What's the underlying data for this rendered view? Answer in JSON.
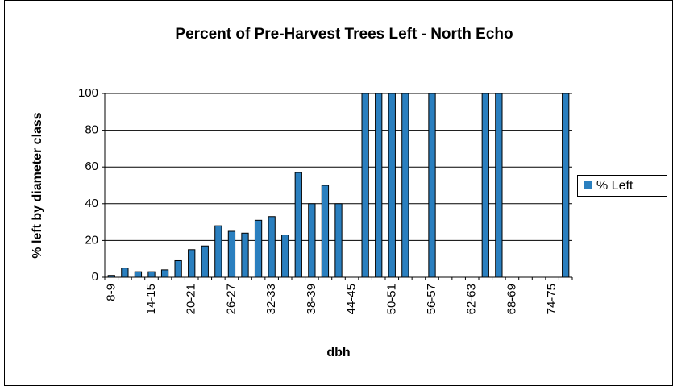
{
  "chart_data": {
    "type": "bar",
    "title": "Percent of Pre-Harvest Trees Left - North Echo",
    "x_label": "dbh",
    "y_label": "% left by diameter class",
    "categories": [
      "8-9",
      null,
      null,
      "14-15",
      null,
      null,
      "20-21",
      null,
      null,
      "26-27",
      null,
      null,
      "32-33",
      null,
      null,
      "38-39",
      null,
      null,
      "44-45",
      null,
      null,
      "50-51",
      null,
      null,
      "56-57",
      null,
      null,
      "62-63",
      null,
      null,
      "68-69",
      null,
      null,
      "74-75",
      null
    ],
    "series": [
      {
        "name": "% Left",
        "color": "#2a7fbf",
        "values": [
          1,
          5,
          3,
          3,
          4,
          9,
          15,
          17,
          28,
          25,
          24,
          31,
          33,
          23,
          57,
          40,
          50,
          40,
          null,
          100,
          100,
          100,
          100,
          null,
          100,
          null,
          null,
          null,
          100,
          100,
          null,
          null,
          null,
          null,
          100
        ]
      }
    ],
    "ylim": [
      0,
      100
    ],
    "yticks": [
      0,
      20,
      40,
      60,
      80,
      100
    ],
    "grid": true,
    "legend": "right"
  }
}
